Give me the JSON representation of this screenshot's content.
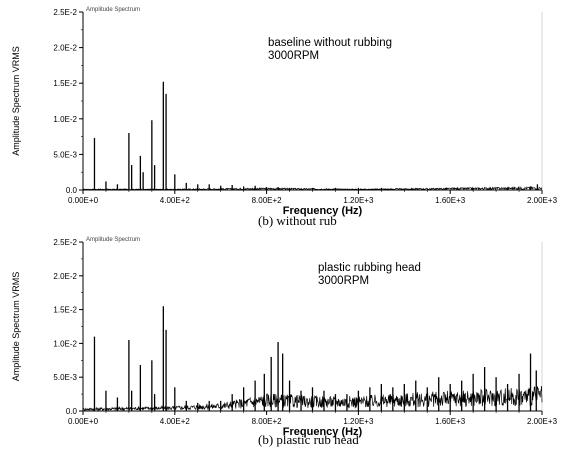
{
  "captions": [
    "(b) without rub",
    "(b) plastic rub head"
  ],
  "chart_data": [
    {
      "type": "line",
      "chart_label": "Amplitude Spectrum",
      "annotation": [
        "baseline without rubbing",
        "3000RPM"
      ],
      "xlabel": "Frequency (Hz)",
      "ylabel": "Amplitude Spectrum VRMS",
      "xlim": [
        0,
        2000
      ],
      "ylim": [
        0,
        0.025
      ],
      "x_ticks": [
        0,
        400,
        800,
        1200,
        1600,
        2000
      ],
      "x_tick_labels": [
        "0.00E+0",
        "4.00E+2",
        "8.00E+2",
        "1.20E+3",
        "1.60E+3",
        "2.00E+3"
      ],
      "y_ticks": [
        0,
        0.005,
        0.01,
        0.015,
        0.02,
        0.025
      ],
      "y_tick_labels": [
        "0.0",
        "5.0E-3",
        "1.0E-2",
        "1.5E-2",
        "2.0E-2",
        "2.5E-2"
      ],
      "grid": false,
      "peaks": [
        [
          50,
          0.0073
        ],
        [
          100,
          0.0012
        ],
        [
          150,
          0.0008
        ],
        [
          200,
          0.008
        ],
        [
          212,
          0.0035
        ],
        [
          250,
          0.0048
        ],
        [
          262,
          0.0025
        ],
        [
          300,
          0.0098
        ],
        [
          312,
          0.0035
        ],
        [
          350,
          0.0152
        ],
        [
          362,
          0.0135
        ],
        [
          400,
          0.0022
        ],
        [
          450,
          0.001
        ],
        [
          500,
          0.0008
        ],
        [
          550,
          0.0008
        ],
        [
          600,
          0.0006
        ],
        [
          650,
          0.0007
        ],
        [
          700,
          0.0005
        ],
        [
          750,
          0.0006
        ],
        [
          800,
          0.0004
        ],
        [
          850,
          0.0004
        ],
        [
          900,
          0.0003
        ],
        [
          1000,
          0.0003
        ],
        [
          1100,
          0.0003
        ],
        [
          1200,
          0.0003
        ],
        [
          1300,
          0.0003
        ],
        [
          1400,
          0.0002
        ],
        [
          1550,
          0.0002
        ],
        [
          1700,
          0.0002
        ],
        [
          1850,
          0.0002
        ],
        [
          1950,
          0.0005
        ],
        [
          1980,
          0.0008
        ]
      ],
      "noise_floor": [
        [
          0,
          0.0001
        ],
        [
          400,
          0.0001
        ],
        [
          800,
          0.0002
        ],
        [
          1200,
          0.0001
        ],
        [
          1600,
          0.0002
        ],
        [
          2000,
          0.0003
        ]
      ]
    },
    {
      "type": "line",
      "chart_label": "Amplitude Spectrum",
      "annotation": [
        "plastic rubbing head",
        "3000RPM"
      ],
      "xlabel": "Frequency (Hz)",
      "ylabel": "Amplitude Spectrum VRMS",
      "xlim": [
        0,
        2000
      ],
      "ylim": [
        0,
        0.025
      ],
      "x_ticks": [
        0,
        400,
        800,
        1200,
        1600,
        2000
      ],
      "x_tick_labels": [
        "0.00E+0",
        "4.00E+2",
        "8.00E+2",
        "1.20E+3",
        "1.60E+3",
        "2.00E+3"
      ],
      "y_ticks": [
        0,
        0.005,
        0.01,
        0.015,
        0.02,
        0.025
      ],
      "y_tick_labels": [
        "0.0",
        "5.0E-3",
        "1.0E-2",
        "1.5E-2",
        "2.0E-2",
        "2.5E-2"
      ],
      "grid": false,
      "peaks": [
        [
          50,
          0.011
        ],
        [
          100,
          0.003
        ],
        [
          150,
          0.002
        ],
        [
          200,
          0.0105
        ],
        [
          212,
          0.003
        ],
        [
          250,
          0.0068
        ],
        [
          300,
          0.0075
        ],
        [
          312,
          0.0025
        ],
        [
          350,
          0.0155
        ],
        [
          362,
          0.012
        ],
        [
          400,
          0.0035
        ],
        [
          450,
          0.0015
        ],
        [
          500,
          0.0012
        ],
        [
          550,
          0.0015
        ],
        [
          600,
          0.0015
        ],
        [
          650,
          0.0025
        ],
        [
          700,
          0.0035
        ],
        [
          750,
          0.0045
        ],
        [
          790,
          0.0055
        ],
        [
          820,
          0.008
        ],
        [
          850,
          0.0102
        ],
        [
          870,
          0.0085
        ],
        [
          900,
          0.0045
        ],
        [
          950,
          0.003
        ],
        [
          1000,
          0.0035
        ],
        [
          1050,
          0.003
        ],
        [
          1100,
          0.0025
        ],
        [
          1150,
          0.0025
        ],
        [
          1200,
          0.003
        ],
        [
          1250,
          0.0035
        ],
        [
          1300,
          0.004
        ],
        [
          1350,
          0.0035
        ],
        [
          1400,
          0.004
        ],
        [
          1450,
          0.0045
        ],
        [
          1500,
          0.0035
        ],
        [
          1550,
          0.005
        ],
        [
          1600,
          0.004
        ],
        [
          1650,
          0.0045
        ],
        [
          1700,
          0.0055
        ],
        [
          1750,
          0.0065
        ],
        [
          1800,
          0.005
        ],
        [
          1850,
          0.004
        ],
        [
          1900,
          0.0055
        ],
        [
          1950,
          0.0085
        ],
        [
          1975,
          0.006
        ]
      ],
      "noise_floor": [
        [
          0,
          0.0003
        ],
        [
          400,
          0.0005
        ],
        [
          600,
          0.0008
        ],
        [
          800,
          0.0018
        ],
        [
          1000,
          0.0015
        ],
        [
          1200,
          0.0015
        ],
        [
          1400,
          0.0018
        ],
        [
          1600,
          0.002
        ],
        [
          1800,
          0.0022
        ],
        [
          2000,
          0.0025
        ]
      ]
    }
  ]
}
